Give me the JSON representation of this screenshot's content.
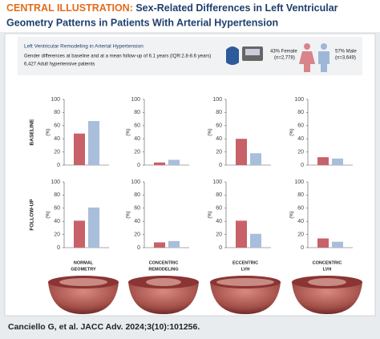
{
  "header": {
    "label": "CENTRAL ILLUSTRATION:",
    "title_lines": [
      "Sex-Related Differences in Left Ventricular",
      "Geometry Patterns in Patients With Arterial Hypertension"
    ]
  },
  "info": {
    "title": "Left Ventricular Remodeling in Arterial Hypertension",
    "lines": [
      "Gender differences at baseline and at a mean follow-up of 6.1 years (IQR:2.8-8.6 years)",
      "6,427 Adult hypertensive patients"
    ],
    "female": [
      "43% Female",
      "(n=2,778)"
    ],
    "male": [
      "57% Male",
      "(n=3,649)"
    ]
  },
  "rows": [
    "BASELINE",
    "FOLLOW-UP"
  ],
  "columns": [
    [
      "NORMAL",
      "GEOMETRY"
    ],
    [
      "CONCENTRIC",
      "REMODELING"
    ],
    [
      "ECCENTRIC",
      "LVH"
    ],
    [
      "CONCENTRIC",
      "LVH"
    ]
  ],
  "chart_data": [
    {
      "type": "bar",
      "ylabel": "(%)",
      "values": [
        48,
        67
      ],
      "colors": [
        "#c8616a",
        "#a8bedb"
      ],
      "ylim": [
        0,
        100
      ],
      "yticks": [
        0,
        20,
        40,
        60,
        80,
        100
      ]
    },
    {
      "type": "bar",
      "ylabel": "(%)",
      "values": [
        4,
        8
      ],
      "colors": [
        "#c8616a",
        "#a8bedb"
      ],
      "ylim": [
        0,
        100
      ],
      "yticks": [
        0,
        20,
        40,
        60,
        80,
        100
      ]
    },
    {
      "type": "bar",
      "ylabel": "(%)",
      "values": [
        40,
        18
      ],
      "colors": [
        "#c8616a",
        "#a8bedb"
      ],
      "ylim": [
        0,
        100
      ],
      "yticks": [
        0,
        20,
        40,
        60,
        80,
        100
      ]
    },
    {
      "type": "bar",
      "ylabel": "(%)",
      "values": [
        12,
        10
      ],
      "colors": [
        "#c8616a",
        "#a8bedb"
      ],
      "ylim": [
        0,
        100
      ],
      "yticks": [
        0,
        20,
        40,
        60,
        80,
        100
      ]
    },
    {
      "type": "bar",
      "ylabel": "(%)",
      "values": [
        41,
        61
      ],
      "colors": [
        "#c8616a",
        "#a8bedb"
      ],
      "ylim": [
        0,
        100
      ],
      "yticks": [
        0,
        20,
        40,
        60,
        80,
        100
      ]
    },
    {
      "type": "bar",
      "ylabel": "(%)",
      "values": [
        8,
        10
      ],
      "colors": [
        "#c8616a",
        "#a8bedb"
      ],
      "ylim": [
        0,
        100
      ],
      "yticks": [
        0,
        20,
        40,
        60,
        80,
        100
      ]
    },
    {
      "type": "bar",
      "ylabel": "(%)",
      "values": [
        41,
        21
      ],
      "colors": [
        "#c8616a",
        "#a8bedb"
      ],
      "ylim": [
        0,
        100
      ],
      "yticks": [
        0,
        20,
        40,
        60,
        80,
        100
      ]
    },
    {
      "type": "bar",
      "ylabel": "(%)",
      "values": [
        14,
        9
      ],
      "colors": [
        "#c8616a",
        "#a8bedb"
      ],
      "ylim": [
        0,
        100
      ],
      "yticks": [
        0,
        20,
        40,
        60,
        80,
        100
      ]
    }
  ],
  "citation": "Canciello G, et al. JACC Adv. 2024;3(10):101256."
}
